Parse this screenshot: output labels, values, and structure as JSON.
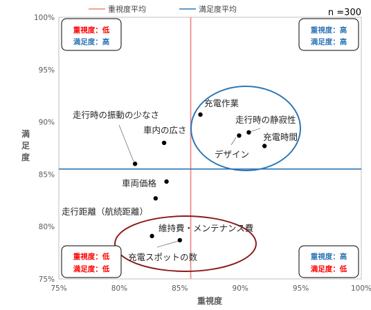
{
  "chart_data": {
    "type": "scatter",
    "title": "",
    "sample_label": "n =300",
    "xlabel": "重視度",
    "ylabel": "満足度",
    "xlim": [
      0.75,
      1.0
    ],
    "ylim": [
      0.75,
      1.0
    ],
    "x_ticks": [
      {
        "value": 0.75,
        "label": "75%"
      },
      {
        "value": 0.8,
        "label": "80%"
      },
      {
        "value": 0.85,
        "label": "85%"
      },
      {
        "value": 0.9,
        "label": "90%"
      },
      {
        "value": 0.95,
        "label": "95%"
      },
      {
        "value": 1.0,
        "label": "100%"
      }
    ],
    "y_ticks": [
      {
        "value": 0.75,
        "label": "75%"
      },
      {
        "value": 0.8,
        "label": "80%"
      },
      {
        "value": 0.85,
        "label": "85%"
      },
      {
        "value": 0.9,
        "label": "90%"
      },
      {
        "value": 0.95,
        "label": "95%"
      },
      {
        "value": 1.0,
        "label": "100%"
      }
    ],
    "grid": false,
    "legend_position": "top",
    "legend": [
      {
        "label": "重視度平均",
        "color": "#f08080"
      },
      {
        "label": "満足度平均",
        "color": "#2e75b6"
      }
    ],
    "reference_lines": {
      "importance_average": 0.859,
      "satisfaction_average": 0.855
    },
    "points": [
      {
        "label": "充電作業",
        "x": 0.867,
        "y": 0.907
      },
      {
        "label": "走行時の静寂性",
        "x": 0.907,
        "y": 0.89
      },
      {
        "label": "デザイン",
        "x": 0.899,
        "y": 0.887
      },
      {
        "label": "充電時間",
        "x": 0.92,
        "y": 0.877
      },
      {
        "label": "走行時の振動の少なさ",
        "x": 0.813,
        "y": 0.86
      },
      {
        "label": "車内の広さ",
        "x": 0.837,
        "y": 0.88
      },
      {
        "label": "車両価格",
        "x": 0.839,
        "y": 0.843
      },
      {
        "label": "走行距離（航続距離）",
        "x": 0.83,
        "y": 0.827
      },
      {
        "label": "維持費・メンテナンス費",
        "x": 0.827,
        "y": 0.791
      },
      {
        "label": "充電スポットの数",
        "x": 0.85,
        "y": 0.787
      }
    ],
    "quadrants": [
      {
        "position": "top-left",
        "importance": "重視度：低",
        "satisfaction": "満足度：高",
        "importance_color": "#ff0000",
        "satisfaction_color": "#2e75b6"
      },
      {
        "position": "top-right",
        "importance": "重視度：高",
        "satisfaction": "満足度：高",
        "importance_color": "#2e75b6",
        "satisfaction_color": "#2e75b6"
      },
      {
        "position": "bottom-left",
        "importance": "重視度：低",
        "satisfaction": "満足度：低",
        "importance_color": "#ff0000",
        "satisfaction_color": "#ff0000"
      },
      {
        "position": "bottom-right",
        "importance": "重視度：高",
        "satisfaction": "満足度：低",
        "importance_color": "#2e75b6",
        "satisfaction_color": "#ff0000"
      }
    ],
    "highlight_colors": {
      "top_right": "#2e75b6",
      "bottom": "#8b1a1a"
    }
  }
}
